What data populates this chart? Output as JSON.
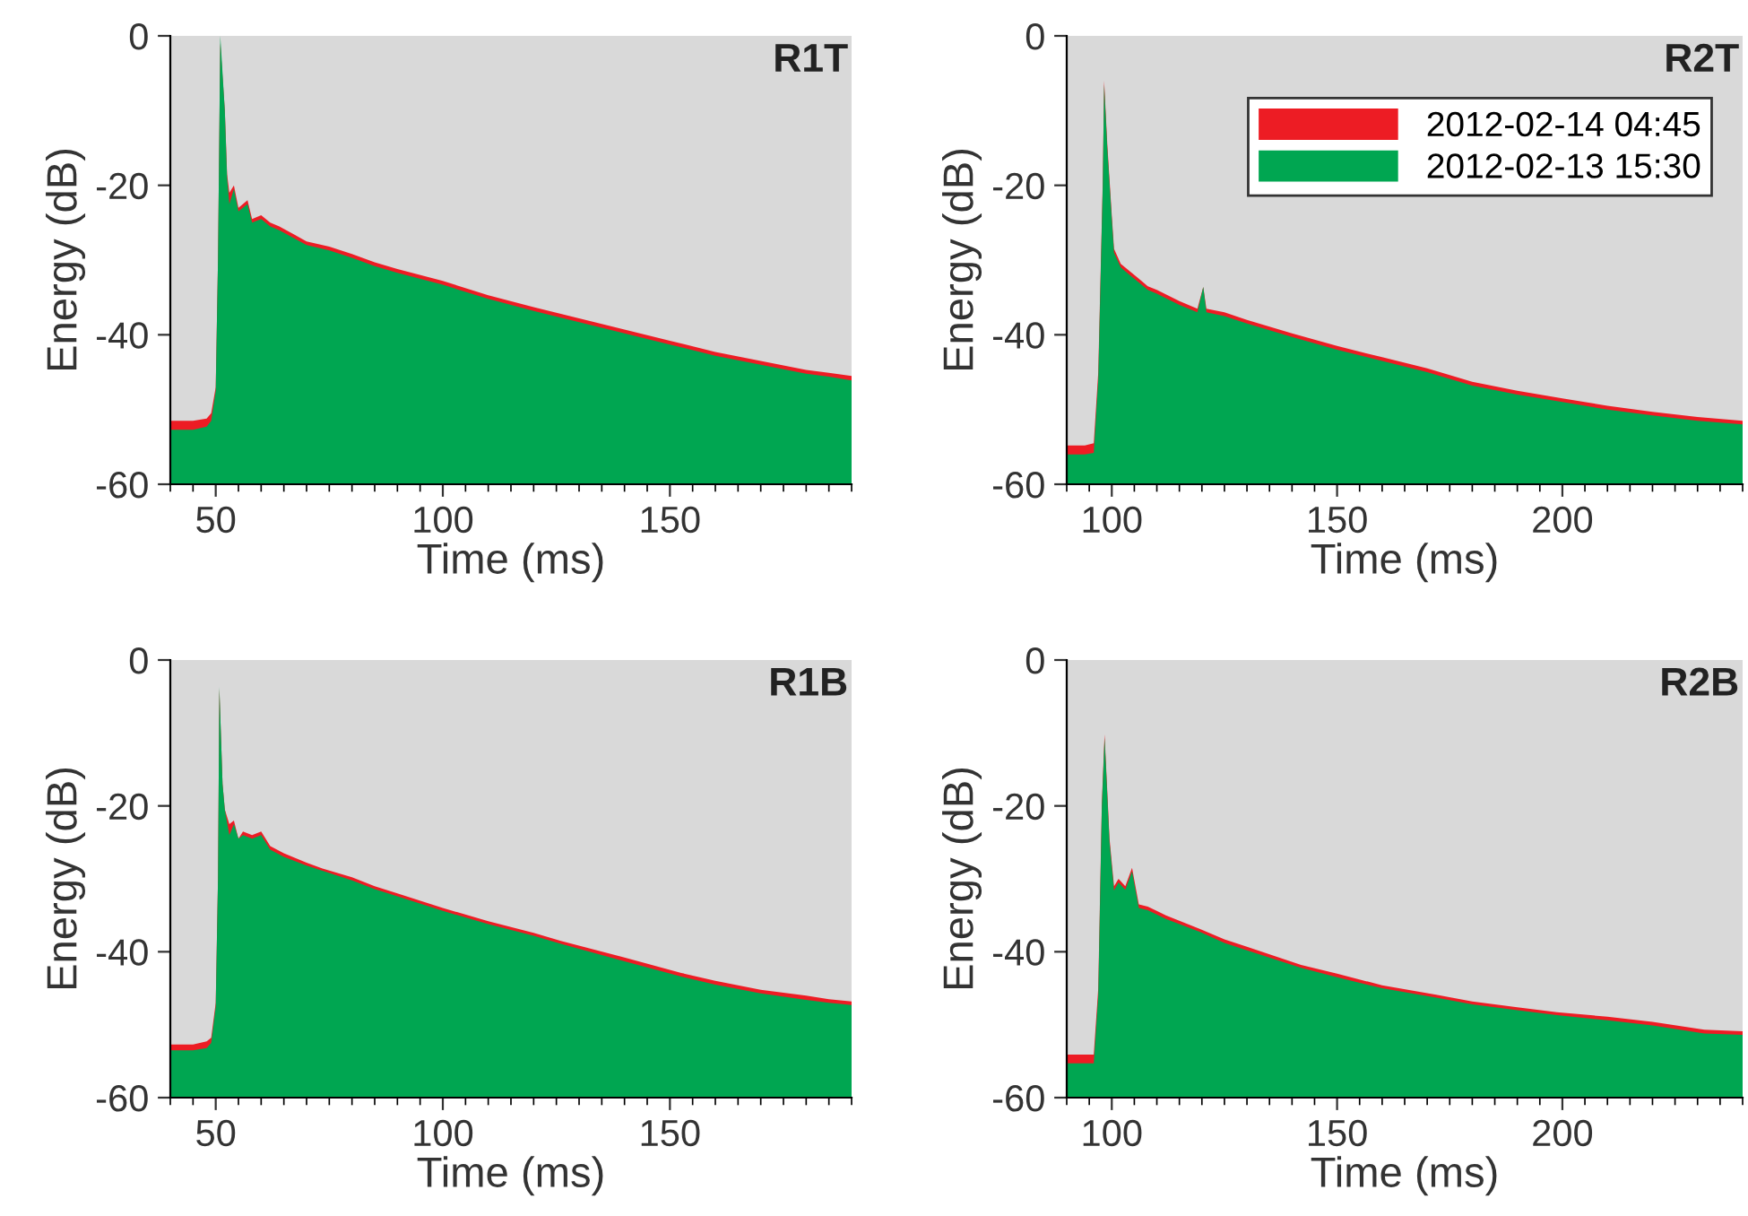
{
  "chart_data": [
    {
      "type": "area",
      "title": "R1T",
      "xlabel": "Time (ms)",
      "ylabel": "Energy (dB)",
      "xlim": [
        40,
        190
      ],
      "ylim": [
        -60,
        0
      ],
      "xticks": [
        50,
        100,
        150
      ],
      "yticks": [
        -60,
        -40,
        -20,
        0
      ],
      "grid": false,
      "series": [
        {
          "color": "#ed1c24",
          "x": [
            40,
            45,
            48,
            49,
            50,
            50.5,
            51,
            52,
            52.5,
            53,
            54,
            55,
            57,
            58,
            60,
            62,
            64,
            67,
            70,
            75,
            80,
            85,
            90,
            100,
            110,
            120,
            130,
            140,
            150,
            160,
            170,
            180,
            185,
            190
          ],
          "values": [
            -51.5,
            -51.5,
            -51.2,
            -50.5,
            -47,
            -30,
            -1,
            -10,
            -18.5,
            -21,
            -20,
            -23,
            -22,
            -24.5,
            -24,
            -25,
            -25.5,
            -26.5,
            -27.5,
            -28.2,
            -29.2,
            -30.3,
            -31.2,
            -32.8,
            -34.7,
            -36.3,
            -37.8,
            -39.3,
            -40.8,
            -42.3,
            -43.5,
            -44.7,
            -45.1,
            -45.5
          ]
        },
        {
          "color": "#00a651",
          "x": [
            40,
            45,
            48,
            49,
            50,
            50.5,
            51,
            52,
            52.5,
            53,
            54,
            55,
            57,
            58,
            60,
            62,
            64,
            67,
            70,
            75,
            80,
            85,
            90,
            100,
            110,
            120,
            130,
            140,
            150,
            160,
            170,
            180,
            185,
            190
          ],
          "values": [
            -52.7,
            -52.7,
            -52.3,
            -51.5,
            -47.5,
            -30,
            0,
            -10,
            -19,
            -22.5,
            -20.5,
            -23.5,
            -22.5,
            -25,
            -24.5,
            -25.5,
            -26,
            -27,
            -28,
            -28.7,
            -29.7,
            -30.8,
            -31.7,
            -33.3,
            -35.2,
            -36.8,
            -38.3,
            -39.8,
            -41.3,
            -42.8,
            -44,
            -45.2,
            -45.6,
            -46.1
          ]
        }
      ]
    },
    {
      "type": "area",
      "title": "R2T",
      "xlabel": "Time (ms)",
      "ylabel": "Energy (dB)",
      "xlim": [
        90,
        240
      ],
      "ylim": [
        -60,
        0
      ],
      "xticks": [
        100,
        150,
        200
      ],
      "yticks": [
        -60,
        -40,
        -20,
        0
      ],
      "grid": false,
      "legend": "top right",
      "series": [
        {
          "name": "2012-02-14 04:45",
          "color": "#ed1c24",
          "x": [
            90,
            94,
            96,
            97,
            98,
            98.3,
            99,
            100,
            100.5,
            102,
            104,
            106,
            108,
            110,
            115,
            119,
            120.3,
            121,
            125,
            130,
            140,
            150,
            160,
            170,
            180,
            190,
            200,
            210,
            220,
            230,
            240
          ],
          "values": [
            -54.8,
            -54.8,
            -54.5,
            -45,
            -19.5,
            -6,
            -14.5,
            -24,
            -28.5,
            -30.5,
            -31.5,
            -32.5,
            -33.5,
            -34,
            -35.5,
            -36.5,
            -33.6,
            -36.5,
            -37,
            -38,
            -39.8,
            -41.5,
            -43,
            -44.5,
            -46.3,
            -47.5,
            -48.5,
            -49.5,
            -50.3,
            -51,
            -51.5
          ]
        },
        {
          "name": "2012-02-13 15:30",
          "color": "#00a651",
          "x": [
            90,
            94,
            96,
            97,
            98,
            98.3,
            99,
            100,
            100.5,
            102,
            104,
            106,
            108,
            110,
            115,
            119,
            120.3,
            121,
            125,
            130,
            140,
            150,
            160,
            170,
            180,
            190,
            200,
            210,
            220,
            230,
            240
          ],
          "values": [
            -56,
            -56,
            -55.8,
            -46,
            -20,
            -6.5,
            -15,
            -24.5,
            -29,
            -31,
            -32,
            -33,
            -34,
            -34.5,
            -36,
            -37,
            -33.6,
            -37,
            -37.5,
            -38.5,
            -40.3,
            -42,
            -43.5,
            -45,
            -46.8,
            -48,
            -49,
            -50,
            -50.8,
            -51.5,
            -52
          ]
        }
      ]
    },
    {
      "type": "area",
      "title": "R1B",
      "xlabel": "Time (ms)",
      "ylabel": "Energy (dB)",
      "xlim": [
        40,
        190
      ],
      "ylim": [
        -60,
        0
      ],
      "xticks": [
        50,
        100,
        150
      ],
      "yticks": [
        -60,
        -40,
        -20,
        0
      ],
      "grid": false,
      "series": [
        {
          "color": "#ed1c24",
          "x": [
            40,
            45,
            48,
            49,
            50,
            50.5,
            50.8,
            51.5,
            52,
            53,
            54,
            55,
            56,
            58,
            60,
            62,
            65,
            70,
            73.5,
            80,
            85,
            90,
            96,
            100,
            110,
            120,
            126,
            140,
            152.5,
            160,
            170,
            180,
            185,
            190
          ],
          "values": [
            -52.7,
            -52.7,
            -52.3,
            -51.8,
            -47,
            -30,
            -4,
            -17,
            -20.5,
            -22.5,
            -22,
            -24.5,
            -23.5,
            -24,
            -23.5,
            -25.5,
            -26.5,
            -27.8,
            -28.6,
            -29.8,
            -31,
            -32,
            -33.2,
            -34,
            -35.8,
            -37.4,
            -38.5,
            -40.8,
            -42.9,
            -44,
            -45.2,
            -46,
            -46.5,
            -46.8
          ]
        },
        {
          "color": "#00a651",
          "x": [
            40,
            45,
            48,
            49,
            50,
            50.5,
            50.8,
            51.5,
            52,
            53,
            54,
            55,
            56,
            58,
            60,
            62,
            65,
            70,
            73.5,
            80,
            85,
            90,
            96,
            100,
            110,
            120,
            126,
            140,
            152.5,
            160,
            170,
            180,
            185,
            190
          ],
          "values": [
            -53.5,
            -53.5,
            -53.2,
            -52.5,
            -47.5,
            -30,
            -3.7,
            -17,
            -20.5,
            -24,
            -22.5,
            -24.5,
            -24,
            -24.5,
            -24,
            -26,
            -27,
            -28.2,
            -28.9,
            -30.2,
            -31.4,
            -32.4,
            -33.6,
            -34.4,
            -36.2,
            -37.8,
            -38.9,
            -41.3,
            -43.4,
            -44.5,
            -45.7,
            -46.6,
            -47,
            -47.3
          ]
        }
      ]
    },
    {
      "type": "area",
      "title": "R2B",
      "xlabel": "Time (ms)",
      "ylabel": "Energy (dB)",
      "xlim": [
        90,
        240
      ],
      "ylim": [
        -60,
        0
      ],
      "xticks": [
        100,
        150,
        200
      ],
      "yticks": [
        -60,
        -40,
        -20,
        0
      ],
      "grid": false,
      "series": [
        {
          "color": "#ed1c24",
          "x": [
            90,
            94,
            96,
            97,
            97.8,
            98.4,
            99.5,
            100.5,
            101.5,
            103,
            104.5,
            106,
            108,
            112,
            119.6,
            125,
            130,
            142,
            150,
            160,
            172,
            180,
            190,
            198.8,
            210,
            220,
            231.5,
            240
          ],
          "values": [
            -54.1,
            -54.1,
            -54.1,
            -45,
            -19.5,
            -10.2,
            -24.5,
            -31,
            -30,
            -31,
            -28.5,
            -33.5,
            -33.8,
            -35,
            -36.9,
            -38.3,
            -39.3,
            -41.8,
            -43,
            -44.6,
            -45.9,
            -46.8,
            -47.6,
            -48.3,
            -48.9,
            -49.6,
            -50.7,
            -50.9
          ]
        },
        {
          "color": "#00a651",
          "x": [
            90,
            94,
            96,
            97,
            97.8,
            98.4,
            99.5,
            100.5,
            101.5,
            103,
            104.5,
            106,
            108,
            112,
            119.6,
            125,
            130,
            142,
            150,
            160,
            172,
            180,
            190,
            198.8,
            210,
            220,
            231.5,
            240
          ],
          "values": [
            -55.3,
            -55.3,
            -55.3,
            -46,
            -20,
            -10.7,
            -25,
            -31.6,
            -30.5,
            -31.5,
            -29,
            -34,
            -34.3,
            -35.5,
            -37.3,
            -38.8,
            -39.8,
            -42.2,
            -43.5,
            -45,
            -46.3,
            -47.2,
            -48,
            -48.7,
            -49.4,
            -50.1,
            -51.2,
            -51.4
          ]
        }
      ]
    }
  ]
}
